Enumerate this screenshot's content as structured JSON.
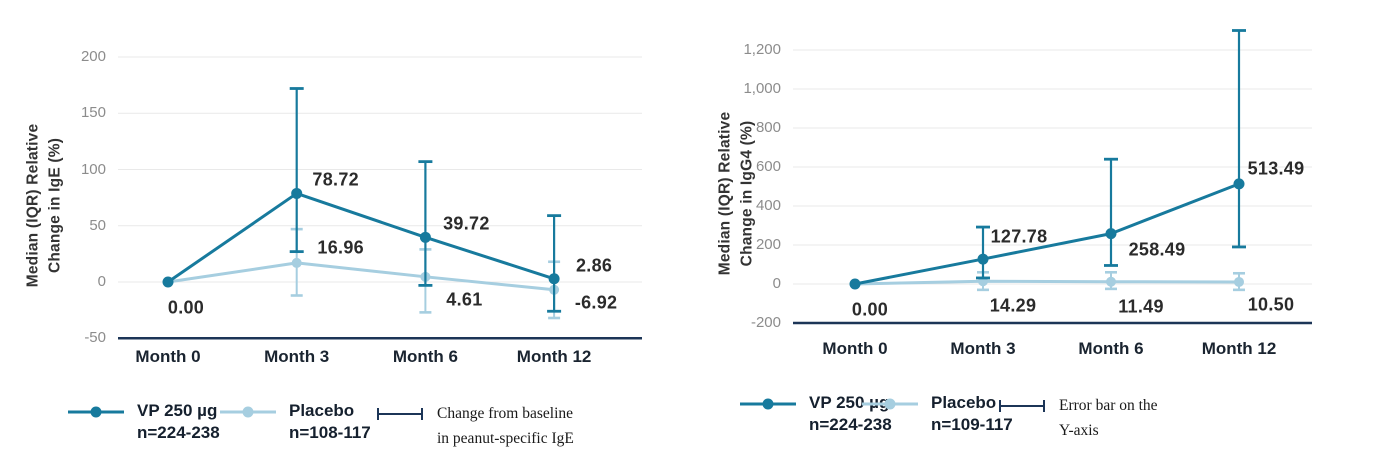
{
  "colors": {
    "vp_teal": "#177a9d",
    "placebo_blue": "#a6cee0",
    "axis_navy": "#1c3557",
    "grid_gray": "#e9e9e9",
    "tick_gray": "#8c8c8c",
    "data_label": "#2b2b2b",
    "month_label": "#1a2430"
  },
  "chart_data": [
    {
      "type": "line",
      "title": "",
      "ylabel_lines": [
        "Median (IQR) Relative",
        "Change in IgE (%)"
      ],
      "xlabel": "",
      "categories": [
        "Month 0",
        "Month 3",
        "Month 6",
        "Month 12"
      ],
      "yticks": [
        200,
        150,
        100,
        50,
        0,
        -50
      ],
      "ytick_labels": [
        "200",
        "150",
        "100",
        "50",
        "0",
        "-50"
      ],
      "ylim": [
        -50,
        200
      ],
      "axis_tick": -50,
      "grid": true,
      "legend_position": "bottom",
      "series": [
        {
          "name": "VP 250 µg",
          "subtitle": "n=224-238",
          "color_key": "vp_teal",
          "values": [
            0.0,
            78.72,
            39.72,
            2.86
          ],
          "value_labels": [
            "0.00",
            "78.72",
            "39.72",
            "2.86"
          ],
          "iqr_low": [
            null,
            27,
            -3,
            -26
          ],
          "iqr_high": [
            null,
            172,
            107,
            59
          ]
        },
        {
          "name": "Placebo",
          "subtitle": "n=108-117",
          "color_key": "placebo_blue",
          "values": [
            0.0,
            16.96,
            4.61,
            -6.92
          ],
          "value_labels": [
            null,
            "16.96",
            "4.61",
            "-6.92"
          ],
          "iqr_low": [
            null,
            -12,
            -27,
            -32
          ],
          "iqr_high": [
            null,
            47,
            29,
            18
          ]
        }
      ],
      "legend_note_lines": [
        "Change from baseline",
        "in peanut-specific IgE"
      ]
    },
    {
      "type": "line",
      "title": "",
      "ylabel_lines": [
        "Median (IQR) Relative",
        "Change in IgG4 (%)"
      ],
      "xlabel": "",
      "categories": [
        "Month 0",
        "Month 3",
        "Month 6",
        "Month 12"
      ],
      "yticks": [
        1200,
        1000,
        800,
        600,
        400,
        200,
        0,
        -200
      ],
      "ytick_labels": [
        "1,200",
        "1,000",
        "800",
        "600",
        "400",
        "200",
        "0",
        "-200"
      ],
      "ylim": [
        -200,
        1200
      ],
      "axis_tick": -200,
      "grid": true,
      "legend_position": "bottom",
      "series": [
        {
          "name": "VP 250 µg",
          "subtitle": "n=224-238",
          "color_key": "vp_teal",
          "values": [
            0.0,
            127.78,
            258.49,
            513.49
          ],
          "value_labels": [
            "0.00",
            "127.78",
            "258.49",
            "513.49"
          ],
          "iqr_low": [
            null,
            31,
            95,
            190
          ],
          "iqr_high": [
            null,
            292,
            640,
            1300
          ]
        },
        {
          "name": "Placebo",
          "subtitle": "n=109-117",
          "color_key": "placebo_blue",
          "values": [
            0.0,
            14.29,
            11.49,
            10.5
          ],
          "value_labels": [
            null,
            "14.29",
            "11.49",
            "10.50"
          ],
          "iqr_low": [
            null,
            -30,
            -25,
            -30
          ],
          "iqr_high": [
            null,
            60,
            60,
            55
          ]
        }
      ],
      "legend_note_lines": [
        "Error bar on the",
        "Y-axis"
      ]
    }
  ]
}
